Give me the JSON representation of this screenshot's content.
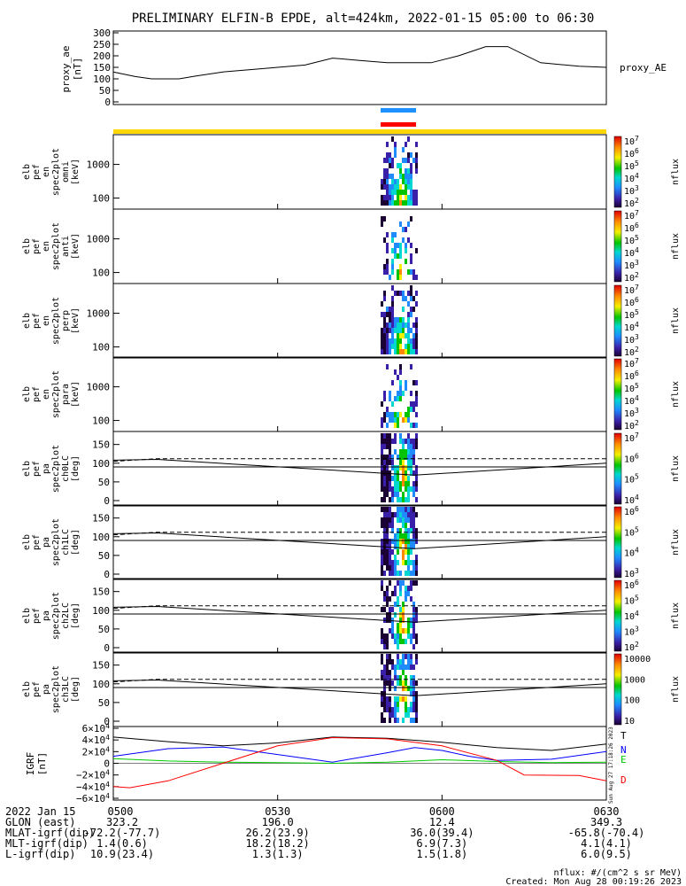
{
  "title": "PRELIMINARY ELFIN-B EPDE, alt=424km, 2022-01-15 05:00 to 06:30",
  "colors": {
    "black": "#000000",
    "blue": "#0000ff",
    "green": "#00cc00",
    "red": "#ff0000",
    "bar_blue": "#1e90ff",
    "bar_red": "#ff0000",
    "bar_yellow": "#ffd700"
  },
  "chart_data": [
    {
      "type": "line",
      "panel": "proxy_ae",
      "ylabel": [
        "proxy_ae",
        "[nT]"
      ],
      "series_label": "proxy_AE",
      "yticks": [
        "300",
        "250",
        "200",
        "150",
        "100",
        "50",
        "0"
      ],
      "ylim": [
        0,
        300
      ],
      "xlim_minutes": [
        0,
        90
      ],
      "x": [
        0,
        4,
        7,
        12,
        15,
        20,
        25,
        35,
        40,
        45,
        50,
        58,
        63,
        68,
        72,
        78,
        85,
        90
      ],
      "y": [
        130,
        110,
        100,
        100,
        112,
        130,
        140,
        160,
        190,
        180,
        170,
        170,
        200,
        240,
        240,
        170,
        155,
        150
      ]
    },
    {
      "type": "heatmap",
      "panel": "omni",
      "ylabel": [
        "elb",
        "pef",
        "en",
        "spec2plot",
        "omni",
        "[keV]"
      ],
      "yticks": [
        "1000",
        "100"
      ],
      "ylog": true,
      "ylim": [
        60,
        6000
      ],
      "colorbar": {
        "label": "nflux",
        "ticks": [
          "10^7",
          "10^6",
          "10^5",
          "10^4",
          "10^3",
          "10^2"
        ]
      }
    },
    {
      "type": "heatmap",
      "panel": "anti",
      "ylabel": [
        "elb",
        "pef",
        "en",
        "spec2plot",
        "anti",
        "[keV]"
      ],
      "yticks": [
        "1000",
        "100"
      ],
      "ylog": true,
      "ylim": [
        60,
        6000
      ],
      "colorbar": {
        "label": "nflux",
        "ticks": [
          "10^7",
          "10^6",
          "10^5",
          "10^4",
          "10^3",
          "10^2"
        ]
      }
    },
    {
      "type": "heatmap",
      "panel": "perp",
      "ylabel": [
        "elb",
        "pef",
        "en",
        "spec2plot",
        "perp",
        "[keV]"
      ],
      "yticks": [
        "1000",
        "100"
      ],
      "ylog": true,
      "ylim": [
        60,
        6000
      ],
      "colorbar": {
        "label": "nflux",
        "ticks": [
          "10^7",
          "10^6",
          "10^5",
          "10^4",
          "10^3",
          "10^2"
        ]
      }
    },
    {
      "type": "heatmap",
      "panel": "para",
      "ylabel": [
        "elb",
        "pef",
        "en",
        "spec2plot",
        "para",
        "[keV]"
      ],
      "yticks": [
        "1000",
        "100"
      ],
      "ylog": true,
      "ylim": [
        60,
        6000
      ],
      "colorbar": {
        "label": "nflux",
        "ticks": [
          "10^7",
          "10^6",
          "10^5",
          "10^4",
          "10^3",
          "10^2"
        ]
      }
    },
    {
      "type": "heatmap",
      "panel": "ch0LC",
      "ylabel": [
        "elb",
        "pef",
        "pa",
        "spec2plot",
        "ch0LC",
        "[deg]"
      ],
      "yticks": [
        "150",
        "100",
        "50",
        "0"
      ],
      "ylim": [
        0,
        180
      ],
      "colorbar": {
        "label": "nflux",
        "ticks": [
          "10^7",
          "10^6",
          "10^5",
          "10^4"
        ]
      }
    },
    {
      "type": "heatmap",
      "panel": "ch1LC",
      "ylabel": [
        "elb",
        "pef",
        "pa",
        "spec2plot",
        "ch1LC",
        "[deg]"
      ],
      "yticks": [
        "150",
        "100",
        "50",
        "0"
      ],
      "ylim": [
        0,
        180
      ],
      "colorbar": {
        "label": "nflux",
        "ticks": [
          "10^6",
          "10^5",
          "10^4",
          "10^3"
        ]
      }
    },
    {
      "type": "heatmap",
      "panel": "ch2LC",
      "ylabel": [
        "elb",
        "pef",
        "pa",
        "spec2plot",
        "ch2LC",
        "[deg]"
      ],
      "yticks": [
        "150",
        "100",
        "50",
        "0"
      ],
      "ylim": [
        0,
        180
      ],
      "colorbar": {
        "label": "nflux",
        "ticks": [
          "10^6",
          "10^5",
          "10^4",
          "10^3",
          "10^2"
        ]
      }
    },
    {
      "type": "heatmap",
      "panel": "ch3LC",
      "ylabel": [
        "elb",
        "pef",
        "pa",
        "spec2plot",
        "ch3LC",
        "[deg]"
      ],
      "yticks": [
        "150",
        "100",
        "50",
        "0"
      ],
      "ylim": [
        0,
        180
      ],
      "colorbar": {
        "label": "nflux",
        "ticks": [
          "10000",
          "1000",
          "100",
          "10"
        ]
      }
    },
    {
      "type": "line",
      "panel": "IGRF",
      "ylabel": [
        "IGRF",
        "[nT]"
      ],
      "yticks": [
        "6×10^4",
        "4×10^4",
        "2×10^4",
        "0",
        "−2×10^4",
        "−4×10^4",
        "−6×10^4"
      ],
      "ylim": [
        -60000,
        60000
      ],
      "legend": [
        "T",
        "N",
        "E",
        "D"
      ],
      "series": [
        {
          "name": "T",
          "x": [
            0,
            10,
            20,
            30,
            40,
            50,
            60,
            70,
            80,
            90
          ],
          "y": [
            45000,
            37000,
            30000,
            35000,
            45000,
            43000,
            36000,
            27000,
            22000,
            33000
          ]
        },
        {
          "name": "N",
          "x": [
            0,
            10,
            20,
            30,
            40,
            50,
            55,
            60,
            65,
            70,
            80,
            90
          ],
          "y": [
            12000,
            25000,
            28000,
            15000,
            2000,
            18000,
            27000,
            22000,
            12000,
            5000,
            7000,
            20000
          ]
        },
        {
          "name": "E",
          "x": [
            0,
            10,
            20,
            30,
            40,
            50,
            60,
            70,
            80,
            90
          ],
          "y": [
            8000,
            4000,
            2000,
            1000,
            0,
            2000,
            6000,
            3000,
            1000,
            2000
          ]
        },
        {
          "name": "D",
          "x": [
            0,
            3,
            10,
            20,
            30,
            40,
            50,
            60,
            70,
            75,
            85,
            90
          ],
          "y": [
            -40000,
            -42000,
            -30000,
            0,
            30000,
            44000,
            42000,
            30000,
            5000,
            -20000,
            -21000,
            -30000
          ]
        }
      ]
    }
  ],
  "x_axis": {
    "date_label": "2022 Jan 15",
    "ticks": [
      "0500",
      "0530",
      "0600",
      "0630"
    ],
    "rows": [
      {
        "label": "GLON (east)",
        "values": [
          "323.2",
          "196.0",
          "12.4",
          "349.3"
        ]
      },
      {
        "label": "MLAT-igrf(dip)",
        "values": [
          "-72.2(-77.7)",
          "26.2(23.9)",
          "36.0(39.4)",
          "-65.8(-70.4)"
        ]
      },
      {
        "label": "MLT-igrf(dip)",
        "values": [
          "1.4(0.6)",
          "18.2(18.2)",
          "6.9(7.3)",
          "4.1(4.1)"
        ]
      },
      {
        "label": "L-igrf(dip)",
        "values": [
          "10.9(23.4)",
          "1.3(1.3)",
          "1.5(1.8)",
          "6.0(9.5)"
        ]
      }
    ]
  },
  "footer": {
    "units": "nflux: #/(cm^2 s sr MeV)",
    "created": "Created: Mon Aug 28 00:19:26 2023",
    "stamp": "Sun Aug 27 17:18:26 2023"
  }
}
